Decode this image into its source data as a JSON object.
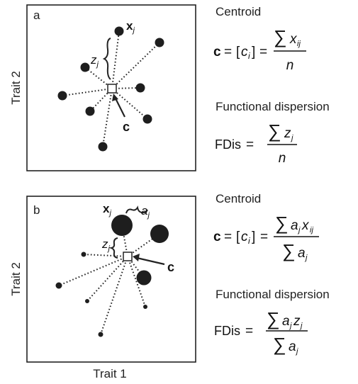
{
  "axes": {
    "trait1": "Trait 1",
    "trait2": "Trait 2"
  },
  "panel_a": {
    "tag": "a",
    "point_label": "x",
    "point_label_sub": "j",
    "dist_label": "z",
    "dist_label_sub": "j",
    "centroid_label": "c"
  },
  "panel_b": {
    "tag": "b",
    "point_label": "x",
    "point_label_sub": "j",
    "abund_label": "a",
    "abund_label_sub": "j",
    "dist_label": "z",
    "dist_label_sub": "j",
    "centroid_label": "c"
  },
  "formulas": {
    "centroid_heading": "Centroid",
    "fdis_heading": "Functional dispersion",
    "fdis_lhs": "FDis",
    "c_symbol": "c",
    "n_symbol": "n",
    "sum_symbol": "∑"
  }
}
